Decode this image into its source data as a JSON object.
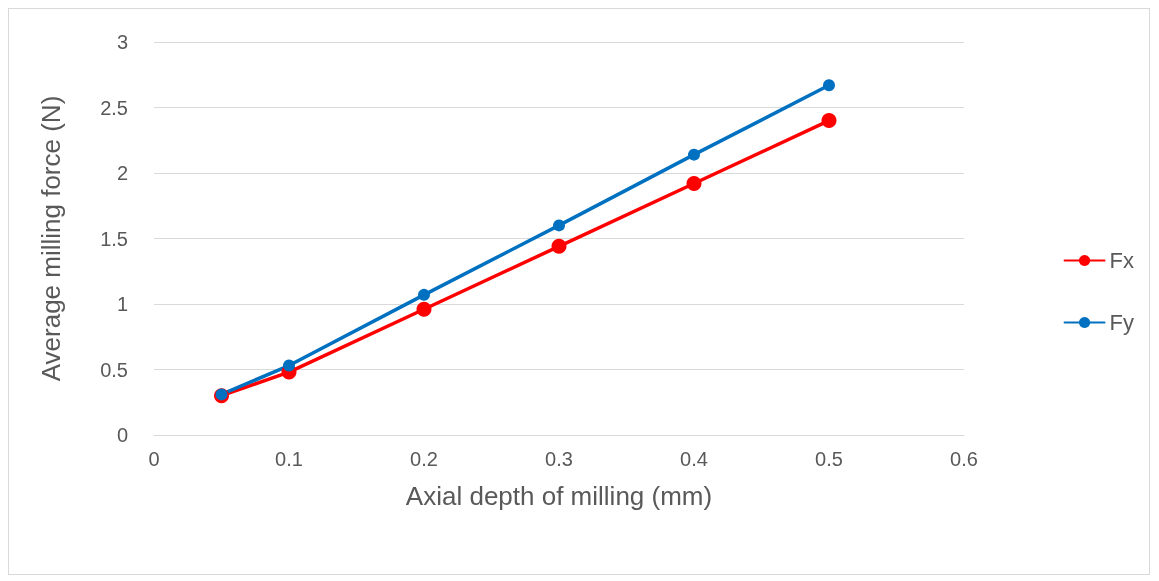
{
  "chart_data": {
    "type": "line",
    "xlabel": "Axial depth of milling (mm)",
    "ylabel": "Average milling force (N)",
    "x": [
      0.05,
      0.1,
      0.2,
      0.3,
      0.4,
      0.5
    ],
    "series": [
      {
        "name": "Fx",
        "color": "#ff0000",
        "values": [
          0.3,
          0.48,
          0.96,
          1.44,
          1.92,
          2.4
        ]
      },
      {
        "name": "Fy",
        "color": "#0070c0",
        "values": [
          0.31,
          0.53,
          1.07,
          1.6,
          2.14,
          2.67
        ]
      }
    ],
    "xlim": [
      0,
      0.6
    ],
    "xticks": [
      0,
      0.1,
      0.2,
      0.3,
      0.4,
      0.5,
      0.6
    ],
    "ylim": [
      0,
      3
    ],
    "yticks": [
      0,
      0.5,
      1,
      1.5,
      2,
      2.5,
      3
    ],
    "grid": "y",
    "legend": "right",
    "marker": "circle",
    "line_style": "solid"
  }
}
